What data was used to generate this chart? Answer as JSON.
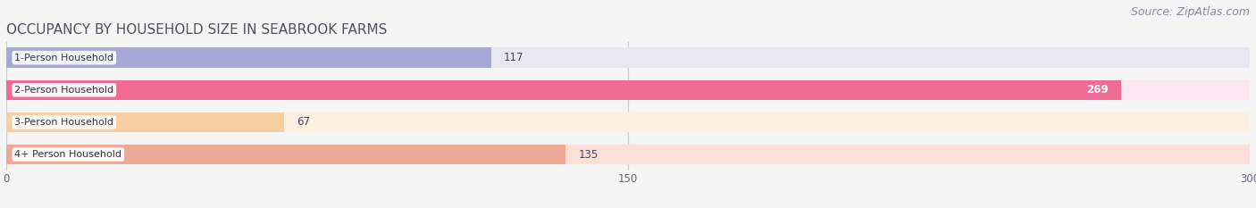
{
  "title": "OCCUPANCY BY HOUSEHOLD SIZE IN SEABROOK FARMS",
  "source": "Source: ZipAtlas.com",
  "categories": [
    "1-Person Household",
    "2-Person Household",
    "3-Person Household",
    "4+ Person Household"
  ],
  "values": [
    117,
    269,
    67,
    135
  ],
  "bar_colors": [
    "#a8a8d8",
    "#ef6b96",
    "#f5cfa0",
    "#eeaa96"
  ],
  "bar_bg_colors": [
    "#e8e8f0",
    "#fce8f0",
    "#fdf0e0",
    "#fce0d8"
  ],
  "value_inside": [
    false,
    true,
    false,
    false
  ],
  "xlim": [
    0,
    300
  ],
  "xticks": [
    0,
    150,
    300
  ],
  "title_color": "#505060",
  "title_fontsize": 11,
  "source_color": "#8888a0",
  "source_fontsize": 9,
  "label_fontsize": 8,
  "value_fontsize": 8.5,
  "bar_height": 0.62,
  "background_color": "#f5f5f5"
}
